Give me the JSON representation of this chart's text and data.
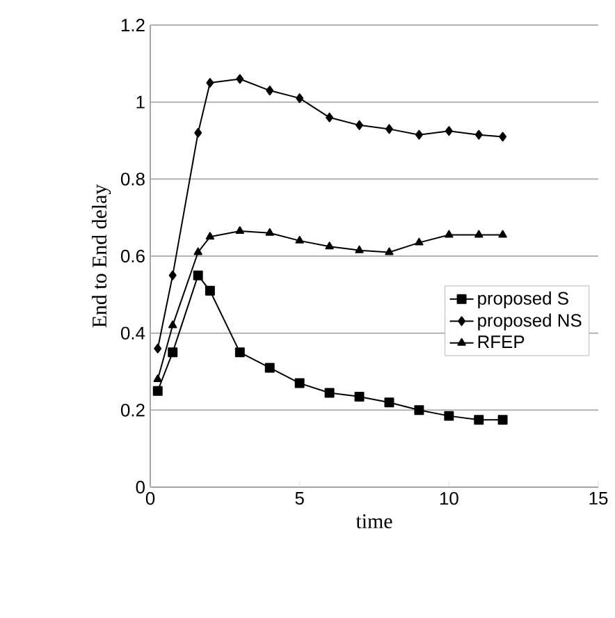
{
  "chart_data": {
    "type": "line",
    "xlabel": "time",
    "ylabel": "End to End delay",
    "x": [
      0.25,
      0.75,
      1.6,
      2,
      3,
      4,
      5,
      6,
      7,
      8,
      9,
      10,
      11,
      11.8
    ],
    "series": [
      {
        "name": "proposed S",
        "color": "#000000",
        "marker": "square",
        "values": [
          0.25,
          0.35,
          0.55,
          0.51,
          0.35,
          0.31,
          0.27,
          0.245,
          0.235,
          0.22,
          0.2,
          0.185,
          0.175,
          0.175
        ]
      },
      {
        "name": "proposed NS",
        "color": "#000000",
        "marker": "diamond",
        "values": [
          0.36,
          0.55,
          0.92,
          1.05,
          1.06,
          1.03,
          1.01,
          0.96,
          0.94,
          0.93,
          0.915,
          0.925,
          0.915,
          0.91
        ]
      },
      {
        "name": "RFEP",
        "color": "#000000",
        "marker": "triangle",
        "values": [
          0.28,
          0.42,
          0.61,
          0.65,
          0.665,
          0.66,
          0.64,
          0.625,
          0.615,
          0.61,
          0.635,
          0.655,
          0.655,
          0.655
        ]
      }
    ],
    "xlim": [
      0,
      15
    ],
    "ylim": [
      0,
      1.2
    ],
    "xticks": [
      0,
      5,
      10,
      15
    ],
    "yticks": [
      0,
      0.2,
      0.4,
      0.6,
      0.8,
      1,
      1.2
    ],
    "grid": "y",
    "legend": "right",
    "line_style": "solid"
  }
}
